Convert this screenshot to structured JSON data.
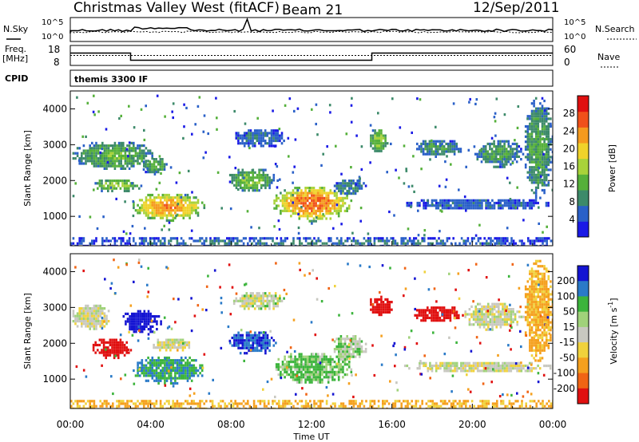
{
  "header": {
    "radar": "Christmas Valley West (fitACF)",
    "beam": "Beam 21",
    "date": "12/Sep/2011"
  },
  "noise_panel": {
    "left_label": "N.Sky",
    "right_label": "N.Search",
    "left_ticks": [
      "10^5",
      "10^0"
    ],
    "right_ticks": [
      "10^5",
      "10^0"
    ]
  },
  "freq_panel": {
    "left_label_1": "Freq.",
    "left_label_2": "[MHz]",
    "right_label": "Nave",
    "left_ticks": [
      "18",
      "8"
    ],
    "right_ticks": [
      "60",
      "0"
    ],
    "freq_steps": [
      {
        "t0": 0,
        "t1": 3,
        "mhz": 14.2
      },
      {
        "t0": 3,
        "t1": 15,
        "mhz": 10.6
      },
      {
        "t0": 15,
        "t1": 24,
        "mhz": 14.2
      }
    ],
    "nave_level": 30
  },
  "cpid": {
    "label": "CPID",
    "mode": "themis 3300 IF"
  },
  "chart_data": [
    {
      "type": "heatmap",
      "name": "power",
      "ylabel": "Slant Range [km]",
      "ylim": [
        180,
        4500
      ],
      "xlim": [
        0,
        24
      ],
      "yticks": [
        1000,
        2000,
        3000,
        4000
      ],
      "colorbar": {
        "label": "Power [dB]",
        "range": [
          0,
          32
        ],
        "ticks": [
          4,
          8,
          12,
          16,
          20,
          24,
          28
        ]
      },
      "regions": [
        {
          "t0": 0,
          "t1": 24,
          "r0": 180,
          "r1": 420,
          "val": 8
        },
        {
          "t0": 0,
          "t1": 4.2,
          "r0": 2300,
          "r1": 3150,
          "val": 13
        },
        {
          "t0": 1.0,
          "t1": 3.5,
          "r0": 1700,
          "r1": 2100,
          "val": 16
        },
        {
          "t0": 3.0,
          "t1": 6.7,
          "r0": 900,
          "r1": 1700,
          "val": 24
        },
        {
          "t0": 3.5,
          "t1": 4.8,
          "r0": 2200,
          "r1": 2700,
          "val": 12
        },
        {
          "t0": 7.8,
          "t1": 10.2,
          "r0": 1700,
          "r1": 2400,
          "val": 14
        },
        {
          "t0": 8.0,
          "t1": 10.8,
          "r0": 2950,
          "r1": 3500,
          "val": 7
        },
        {
          "t0": 10.0,
          "t1": 14.0,
          "r0": 900,
          "r1": 1900,
          "val": 26
        },
        {
          "t0": 13.0,
          "t1": 14.7,
          "r0": 1600,
          "r1": 2100,
          "val": 9
        },
        {
          "t0": 14.8,
          "t1": 15.8,
          "r0": 2800,
          "r1": 3500,
          "val": 15
        },
        {
          "t0": 17.0,
          "t1": 19.5,
          "r0": 2700,
          "r1": 3200,
          "val": 10
        },
        {
          "t0": 20.0,
          "t1": 22.5,
          "r0": 2400,
          "r1": 3200,
          "val": 11
        },
        {
          "t0": 22.5,
          "t1": 24.0,
          "r0": 1500,
          "r1": 4400,
          "val": 12
        },
        {
          "t0": 16.5,
          "t1": 24.0,
          "r0": 1200,
          "r1": 1550,
          "val": 6
        }
      ]
    },
    {
      "type": "heatmap",
      "name": "velocity",
      "ylabel": "Slant Range [km]",
      "ylim": [
        180,
        4500
      ],
      "xlim": [
        0,
        24
      ],
      "yticks": [
        1000,
        2000,
        3000,
        4000
      ],
      "xticks": [
        "00:00",
        "04:00",
        "08:00",
        "12:00",
        "16:00",
        "20:00",
        "00:00"
      ],
      "xlabel": "Time UT",
      "colorbar": {
        "label": "Velocity [m s",
        "label_exp": "-1",
        "label_end": "]",
        "ticks": [
          "200",
          "100",
          "50",
          "15",
          "-15",
          "-50",
          "-100",
          "-200"
        ]
      },
      "regions": [
        {
          "t0": 0,
          "t1": 24,
          "r0": 180,
          "r1": 420,
          "val": -60
        },
        {
          "t0": 0,
          "t1": 2.0,
          "r0": 2400,
          "r1": 3150,
          "val": 0
        },
        {
          "t0": 1.0,
          "t1": 3.0,
          "r0": 1600,
          "r1": 2200,
          "val": -200
        },
        {
          "t0": 2.5,
          "t1": 4.5,
          "r0": 2300,
          "r1": 3000,
          "val": 250
        },
        {
          "t0": 3.0,
          "t1": 6.7,
          "r0": 900,
          "r1": 1700,
          "val": 70
        },
        {
          "t0": 4.0,
          "t1": 6.0,
          "r0": 1800,
          "r1": 2200,
          "val": 0
        },
        {
          "t0": 7.8,
          "t1": 10.2,
          "r0": 1700,
          "r1": 2400,
          "val": 150
        },
        {
          "t0": 8.0,
          "t1": 10.8,
          "r0": 2950,
          "r1": 3500,
          "val": 5
        },
        {
          "t0": 10.0,
          "t1": 14.0,
          "r0": 900,
          "r1": 1800,
          "val": 40
        },
        {
          "t0": 13.0,
          "t1": 14.7,
          "r0": 1500,
          "r1": 2300,
          "val": 20
        },
        {
          "t0": 14.8,
          "t1": 16.0,
          "r0": 2800,
          "r1": 3400,
          "val": -250
        },
        {
          "t0": 17.0,
          "t1": 19.5,
          "r0": 2600,
          "r1": 3100,
          "val": -250
        },
        {
          "t0": 19.5,
          "t1": 22.5,
          "r0": 2400,
          "r1": 3200,
          "val": 0
        },
        {
          "t0": 22.5,
          "t1": 24.0,
          "r0": 1500,
          "r1": 4400,
          "val": -60
        },
        {
          "t0": 16.5,
          "t1": 24.0,
          "r0": 1200,
          "r1": 1550,
          "val": 0
        }
      ]
    }
  ],
  "colors": {
    "power_scale": [
      "#1a1ae6",
      "#2a60c8",
      "#3d8a6a",
      "#55b03a",
      "#a8d23a",
      "#f0d22a",
      "#f59a1e",
      "#f0501a",
      "#e01010"
    ],
    "velocity_scale": {
      "pos3": "#1414d2",
      "pos2": "#2a7ac8",
      "pos1": "#3cb43c",
      "pos0": "#a0d27a",
      "zero": "#c8c8c0",
      "neg1": "#f0d23c",
      "neg2": "#f5a01e",
      "neg3": "#f06414",
      "neg4": "#e01010"
    }
  }
}
